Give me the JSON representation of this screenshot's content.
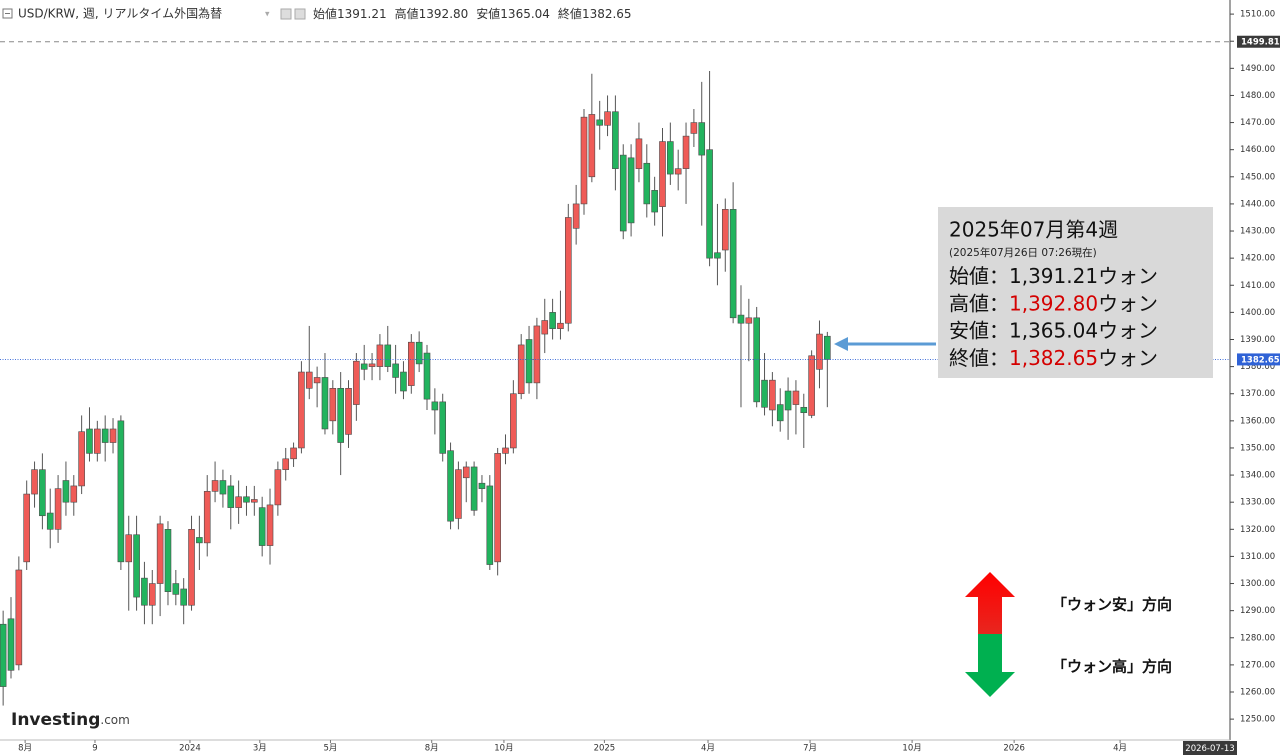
{
  "chart_data": {
    "type": "candlestick",
    "title": "USD/KRW, 週, リアルタイム外国為替",
    "header_ohlc": [
      {
        "label": "始値",
        "value": "1391.21"
      },
      {
        "label": "高値",
        "value": "1392.80"
      },
      {
        "label": "安値",
        "value": "1365.04"
      },
      {
        "label": "終値",
        "value": "1382.65"
      }
    ],
    "up_color": "#ef5b57",
    "down_color": "#22b35e",
    "open": [
      1285,
      1287,
      1270,
      1308,
      1333,
      1342,
      1326,
      1320,
      1338,
      1330,
      1336,
      1357,
      1348,
      1357,
      1352,
      1360,
      1308,
      1318,
      1302,
      1292,
      1300,
      1320,
      1300,
      1298,
      1292,
      1317,
      1315,
      1334,
      1338,
      1336,
      1328,
      1332,
      1330,
      1328,
      1314,
      1329,
      1342,
      1346,
      1350,
      1372,
      1374,
      1376,
      1360,
      1372,
      1355,
      1366,
      1381,
      1380,
      1380,
      1388,
      1381,
      1378,
      1373,
      1389,
      1385,
      1367,
      1367,
      1349,
      1324,
      1339,
      1343,
      1337,
      1336,
      1308,
      1348,
      1350,
      1370,
      1390,
      1374,
      1392,
      1400,
      1394,
      1396,
      1431,
      1440,
      1450,
      1471,
      1469,
      1474,
      1458,
      1457,
      1453,
      1455,
      1445,
      1439,
      1463,
      1451,
      1453,
      1466,
      1470,
      1460,
      1422,
      1423,
      1438,
      1399,
      1396,
      1398,
      1375,
      1364,
      1366,
      1371,
      1366,
      1365,
      1362,
      1379,
      1391.21
    ],
    "high": [
      1290,
      1295,
      1310,
      1338,
      1345,
      1348,
      1335,
      1340,
      1345,
      1340,
      1362,
      1365,
      1360,
      1362,
      1361,
      1362,
      1325,
      1325,
      1308,
      1305,
      1325,
      1323,
      1305,
      1302,
      1325,
      1325,
      1340,
      1345,
      1342,
      1340,
      1338,
      1336,
      1336,
      1332,
      1335,
      1345,
      1350,
      1352,
      1382,
      1395,
      1380,
      1385,
      1375,
      1378,
      1375,
      1385,
      1388,
      1385,
      1392,
      1395,
      1388,
      1382,
      1392,
      1393,
      1388,
      1372,
      1370,
      1352,
      1345,
      1345,
      1345,
      1340,
      1340,
      1350,
      1355,
      1375,
      1392,
      1395,
      1398,
      1405,
      1405,
      1408,
      1440,
      1447,
      1475,
      1488,
      1478,
      1480,
      1480,
      1462,
      1462,
      1470,
      1462,
      1450,
      1468,
      1470,
      1460,
      1470,
      1475,
      1485,
      1489,
      1440,
      1442,
      1448,
      1410,
      1405,
      1402,
      1385,
      1378,
      1372,
      1376,
      1375,
      1370,
      1386,
      1397,
      1392.8
    ],
    "low": [
      1255,
      1265,
      1268,
      1305,
      1328,
      1320,
      1313,
      1315,
      1325,
      1325,
      1333,
      1345,
      1345,
      1345,
      1348,
      1305,
      1290,
      1290,
      1285,
      1285,
      1288,
      1292,
      1292,
      1285,
      1290,
      1305,
      1310,
      1330,
      1328,
      1320,
      1322,
      1325,
      1325,
      1310,
      1307,
      1325,
      1338,
      1343,
      1348,
      1368,
      1365,
      1355,
      1355,
      1340,
      1350,
      1360,
      1375,
      1375,
      1375,
      1378,
      1370,
      1368,
      1370,
      1378,
      1364,
      1355,
      1345,
      1320,
      1320,
      1330,
      1325,
      1330,
      1305,
      1303,
      1344,
      1348,
      1368,
      1370,
      1368,
      1385,
      1390,
      1390,
      1393,
      1425,
      1436,
      1448,
      1460,
      1465,
      1445,
      1427,
      1428,
      1448,
      1435,
      1432,
      1428,
      1447,
      1445,
      1440,
      1461,
      1432,
      1417,
      1410,
      1415,
      1396,
      1365,
      1382,
      1365,
      1362,
      1358,
      1356,
      1353,
      1355,
      1350,
      1361,
      1372,
      1365.04
    ],
    "close": [
      1262,
      1268,
      1305,
      1333,
      1342,
      1325,
      1320,
      1335,
      1330,
      1336,
      1356,
      1348,
      1357,
      1352,
      1357,
      1308,
      1318,
      1295,
      1292,
      1300,
      1322,
      1297,
      1296,
      1292,
      1320,
      1315,
      1334,
      1338,
      1333,
      1328,
      1332,
      1330,
      1331,
      1314,
      1329,
      1342,
      1346,
      1350,
      1378,
      1378,
      1376,
      1357,
      1372,
      1352,
      1372,
      1382,
      1379,
      1381,
      1388,
      1380,
      1376,
      1371,
      1389,
      1381,
      1368,
      1364,
      1348,
      1323,
      1342,
      1343,
      1327,
      1335,
      1307,
      1348,
      1350,
      1370,
      1388,
      1374,
      1395,
      1397,
      1394,
      1396,
      1435,
      1440,
      1472,
      1473,
      1469,
      1474,
      1453,
      1430,
      1433,
      1464,
      1440,
      1437,
      1463,
      1451,
      1453,
      1465,
      1470,
      1458,
      1420,
      1420,
      1438,
      1398,
      1396,
      1398,
      1367,
      1365,
      1375,
      1360,
      1364,
      1371,
      1363,
      1384,
      1392,
      1382.65
    ],
    "xlim": [
      -0.4,
      156.3
    ],
    "xticks": [
      {
        "value": 2.8,
        "label": "8月"
      },
      {
        "value": 11.7,
        "label": "9"
      },
      {
        "value": 23.8,
        "label": "2024"
      },
      {
        "value": 32.7,
        "label": "3月"
      },
      {
        "value": 41.7,
        "label": "5月"
      },
      {
        "value": 54.6,
        "label": "8月"
      },
      {
        "value": 63.8,
        "label": "10月"
      },
      {
        "value": 76.6,
        "label": "2025"
      },
      {
        "value": 89.8,
        "label": "4月"
      },
      {
        "value": 102.8,
        "label": "7月"
      },
      {
        "value": 115.8,
        "label": "10月"
      },
      {
        "value": 128.8,
        "label": "2026"
      },
      {
        "value": 142.3,
        "label": "4月"
      }
    ],
    "x_cursor_label": "2026-07-13",
    "ylim": [
      1242.3,
      1515.2
    ],
    "yticks": [
      {
        "value": 1250,
        "label": "1250.00"
      },
      {
        "value": 1260,
        "label": "1260.00"
      },
      {
        "value": 1270,
        "label": "1270.00"
      },
      {
        "value": 1280,
        "label": "1280.00"
      },
      {
        "value": 1290,
        "label": "1290.00"
      },
      {
        "value": 1300,
        "label": "1300.00"
      },
      {
        "value": 1310,
        "label": "1310.00"
      },
      {
        "value": 1320,
        "label": "1320.00"
      },
      {
        "value": 1330,
        "label": "1330.00"
      },
      {
        "value": 1340,
        "label": "1340.00"
      },
      {
        "value": 1350,
        "label": "1350.00"
      },
      {
        "value": 1360,
        "label": "1360.00"
      },
      {
        "value": 1370,
        "label": "1370.00"
      },
      {
        "value": 1380,
        "label": "1380.00"
      },
      {
        "value": 1390,
        "label": "1390.00"
      },
      {
        "value": 1400,
        "label": "1400.00"
      },
      {
        "value": 1410,
        "label": "1410.00"
      },
      {
        "value": 1420,
        "label": "1420.00"
      },
      {
        "value": 1430,
        "label": "1430.00"
      },
      {
        "value": 1440,
        "label": "1440.00"
      },
      {
        "value": 1450,
        "label": "1450.00"
      },
      {
        "value": 1460,
        "label": "1460.00"
      },
      {
        "value": 1470,
        "label": "1470.00"
      },
      {
        "value": 1480,
        "label": "1480.00"
      },
      {
        "value": 1490,
        "label": "1490.00"
      },
      {
        "value": 1500,
        "label": "1500.00"
      },
      {
        "value": 1510,
        "label": "1510.00"
      }
    ],
    "price_lines": [
      {
        "value": 1499.81,
        "label": "1499.81",
        "style": "dashed",
        "color": "#3a3a3a"
      },
      {
        "value": 1382.65,
        "label": "1382.65",
        "style": "dotted",
        "color": "#2f62d6"
      }
    ],
    "info_box": {
      "title": "2025年07月第4週",
      "subtitle": "(2025年07月26日 07:26現在)",
      "highlight_color": "#d40000",
      "rows": [
        {
          "label": "始値：",
          "value": "1,391.21",
          "unit": "ウォン",
          "highlight": false
        },
        {
          "label": "高値：",
          "value": "1,392.80",
          "unit": "ウォン",
          "highlight": true
        },
        {
          "label": "安値：",
          "value": "1,365.04",
          "unit": "ウォン",
          "highlight": false
        },
        {
          "label": "終値：",
          "value": "1,382.65",
          "unit": "ウォン",
          "highlight": true
        }
      ]
    },
    "direction_legend": {
      "up": "「ウォン安」方向",
      "down": "「ウォン高」方向"
    },
    "logo": {
      "brand": "Investing",
      "suffix": ".com"
    }
  }
}
